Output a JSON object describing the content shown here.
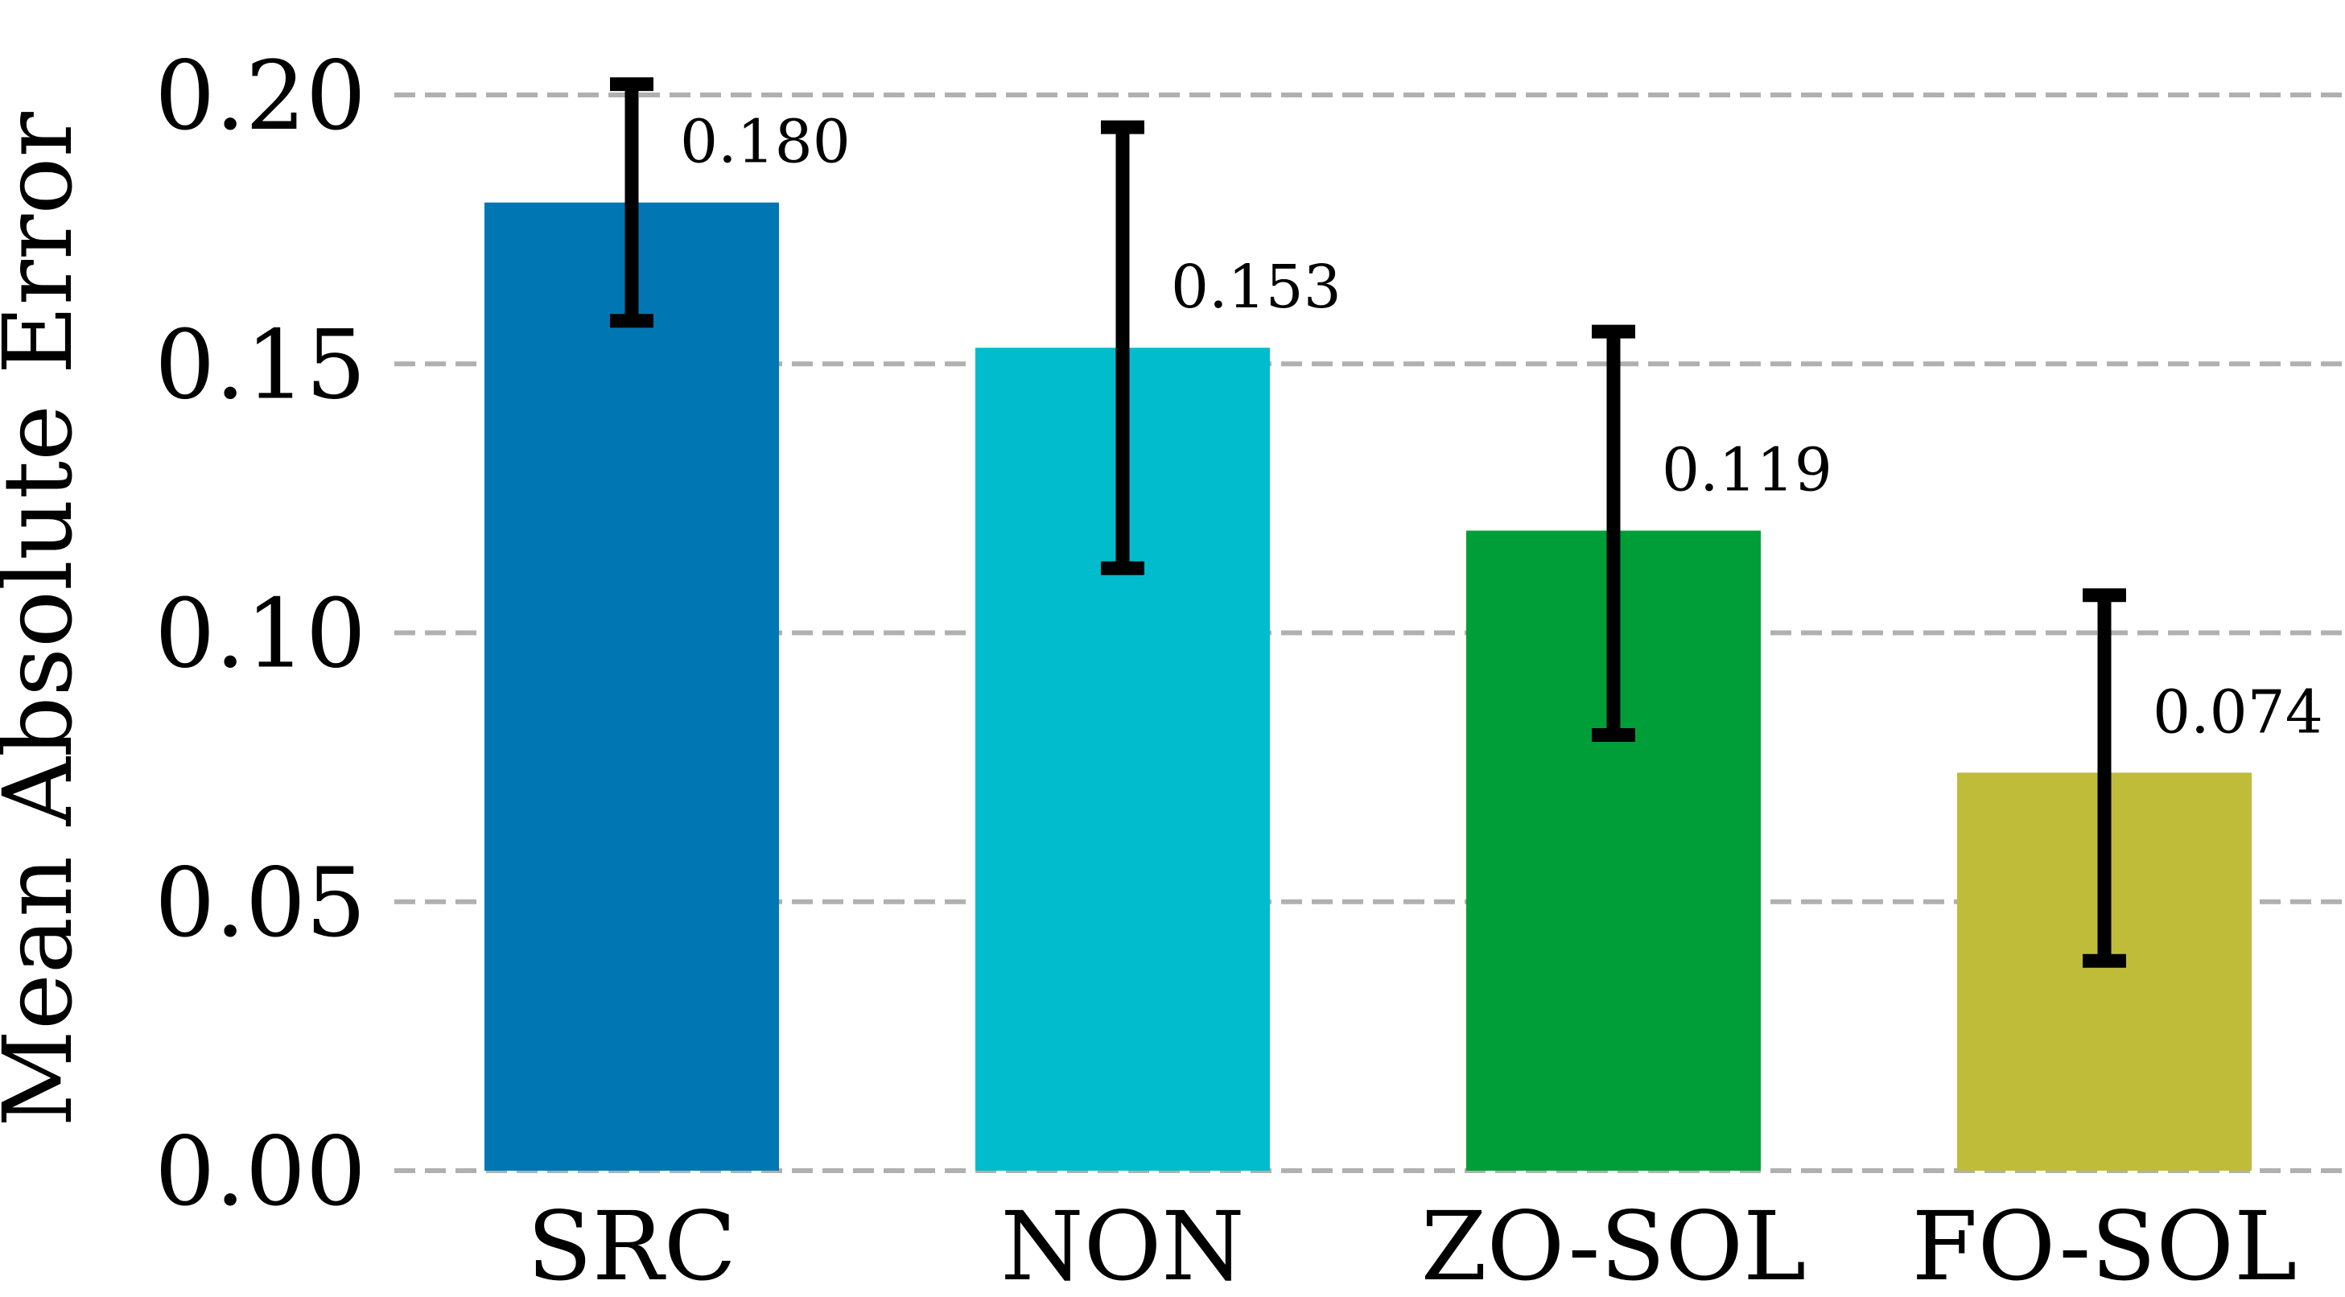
{
  "chart_data": {
    "type": "bar",
    "categories": [
      "SRC",
      "NON",
      "ZO-SOL",
      "FO-SOL"
    ],
    "values": [
      0.18,
      0.153,
      0.119,
      0.074
    ],
    "value_labels": [
      "0.180",
      "0.153",
      "0.119",
      "0.074"
    ],
    "error_low": [
      0.158,
      0.112,
      0.081,
      0.039
    ],
    "error_high": [
      0.202,
      0.194,
      0.156,
      0.107
    ],
    "colors": [
      "#0077b3",
      "#00bccc",
      "#009e38",
      "#bfbc3a"
    ],
    "ylabel": "Mean Absolute Error",
    "xlabel": "",
    "ylim": [
      0,
      0.2
    ],
    "yticks": [
      0.0,
      0.05,
      0.1,
      0.15,
      0.2
    ],
    "ytick_labels": [
      "0.00",
      "0.05",
      "0.10",
      "0.15",
      "0.20"
    ],
    "grid": "y-dashed",
    "legend": "none"
  }
}
